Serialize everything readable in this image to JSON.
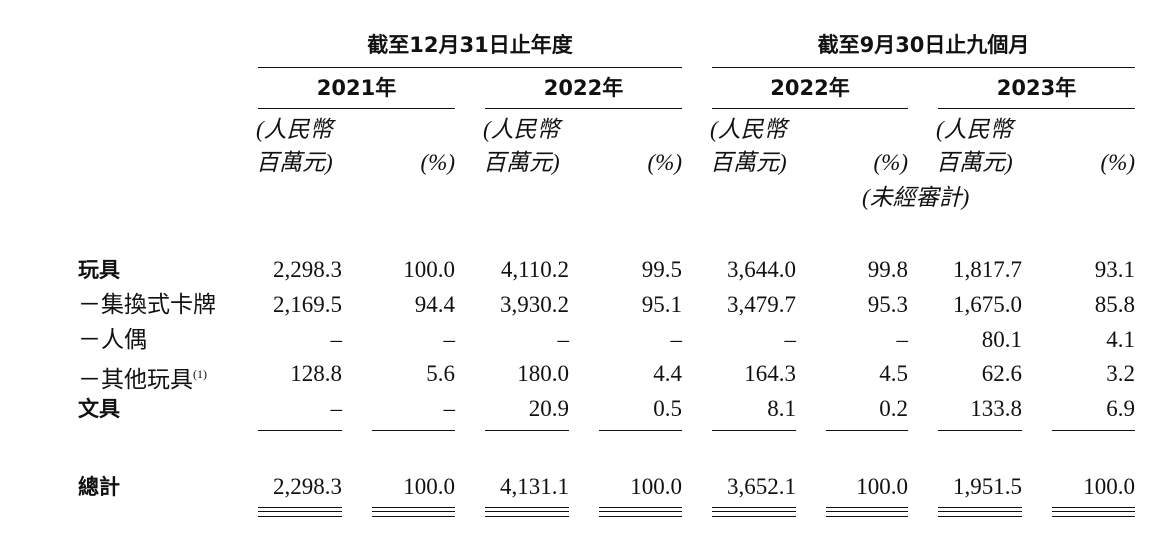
{
  "header": {
    "groups": [
      {
        "title": "截至12月31日止年度",
        "years": [
          {
            "year": "2021年",
            "amount_unit": [
              "(人民幣",
              "百萬元)"
            ],
            "pct_unit": "(%)"
          },
          {
            "year": "2022年",
            "amount_unit": [
              "(人民幣",
              "百萬元)"
            ],
            "pct_unit": "(%)"
          }
        ]
      },
      {
        "title": "截至9月30日止九個月",
        "years": [
          {
            "year": "2022年",
            "amount_unit": [
              "(人民幣",
              "百萬元)"
            ],
            "pct_unit": "(%)",
            "note": "(未經審計)"
          },
          {
            "year": "2023年",
            "amount_unit": [
              "(人民幣",
              "百萬元)"
            ],
            "pct_unit": "(%)"
          }
        ]
      }
    ]
  },
  "table": {
    "rows": [
      {
        "label": "玩具",
        "values": [
          "2,298.3",
          "100.0",
          "4,110.2",
          "99.5",
          "3,644.0",
          "99.8",
          "1,817.7",
          "93.1"
        ]
      },
      {
        "label": "－集換式卡牌",
        "values": [
          "2,169.5",
          "94.4",
          "3,930.2",
          "95.1",
          "3,479.7",
          "95.3",
          "1,675.0",
          "85.8"
        ]
      },
      {
        "label": "－人偶",
        "values": [
          "–",
          "–",
          "–",
          "–",
          "–",
          "–",
          "80.1",
          "4.1"
        ]
      },
      {
        "label": "－其他玩具",
        "note": "(1)",
        "values": [
          "128.8",
          "5.6",
          "180.0",
          "4.4",
          "164.3",
          "4.5",
          "62.6",
          "3.2"
        ]
      },
      {
        "label": "文具",
        "values": [
          "–",
          "–",
          "20.9",
          "0.5",
          "8.1",
          "0.2",
          "133.8",
          "6.9"
        ]
      }
    ],
    "total": {
      "label": "總計",
      "values": [
        "2,298.3",
        "100.0",
        "4,131.1",
        "100.0",
        "3,652.1",
        "100.0",
        "1,951.5",
        "100.0"
      ]
    }
  }
}
